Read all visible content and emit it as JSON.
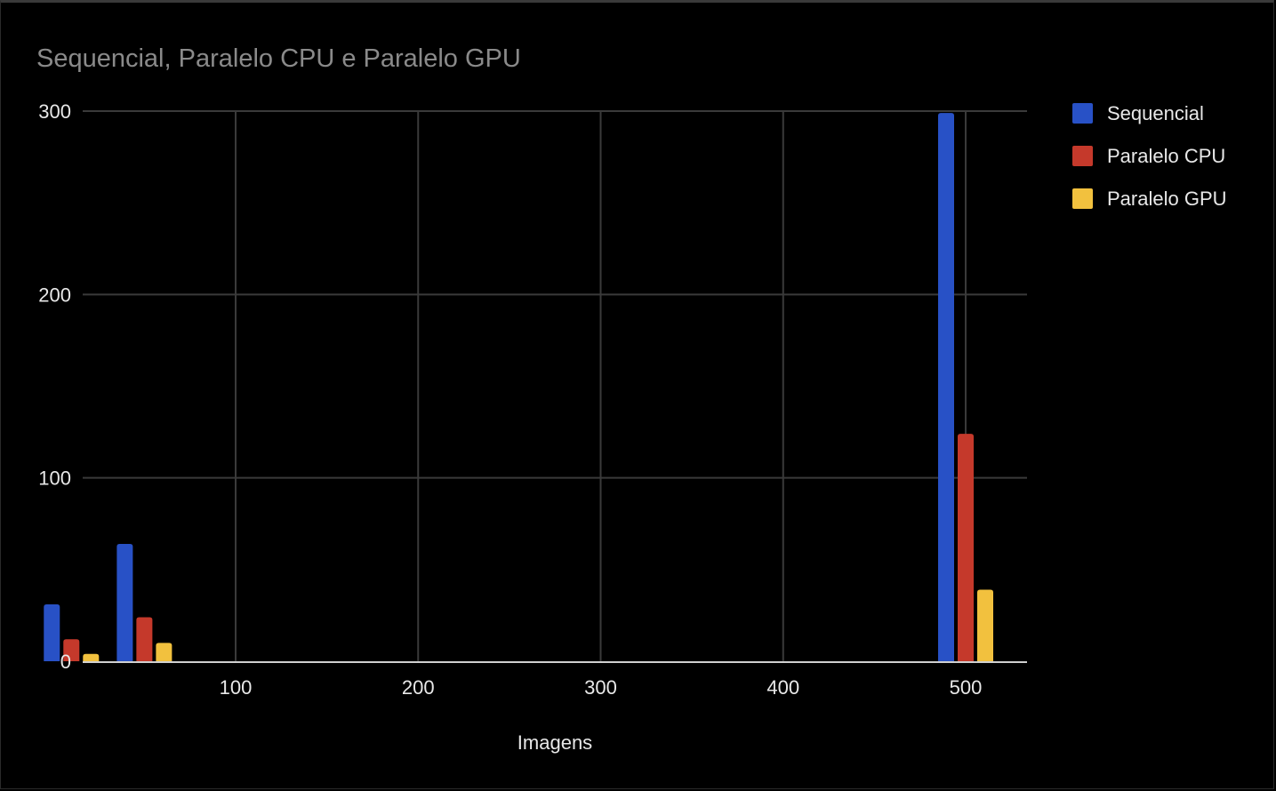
{
  "chart_data": {
    "type": "bar",
    "title": "Sequencial, Paralelo CPU e Paralelo GPU",
    "xlabel": "Imagens",
    "ylabel": "",
    "x": [
      10,
      50,
      500
    ],
    "series": [
      {
        "name": "Sequencial",
        "color": "#2851c6",
        "values": [
          31,
          64,
          299
        ]
      },
      {
        "name": "Paralelo CPU",
        "color": "#c5392b",
        "values": [
          12,
          24,
          124
        ]
      },
      {
        "name": "Paralelo GPU",
        "color": "#f2c13e",
        "values": [
          4,
          10,
          39
        ]
      }
    ],
    "xlim": [
      -30,
      530
    ],
    "ylim": [
      0,
      300
    ],
    "xticks": [
      100,
      200,
      300,
      400,
      500
    ],
    "yticks": [
      0,
      100,
      200,
      300
    ],
    "grid": true,
    "legend": "right",
    "background": "#000000",
    "grid_color": "#3a3a3a",
    "axis_color": "#d0d0d0"
  }
}
